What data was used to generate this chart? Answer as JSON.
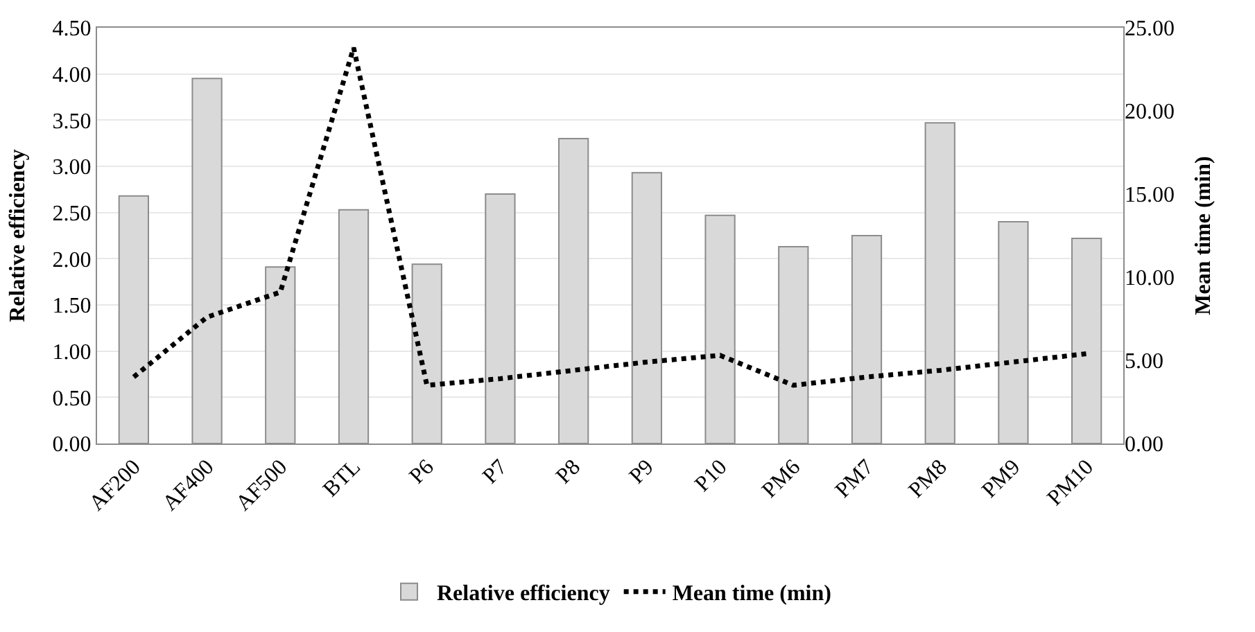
{
  "chart_data": {
    "type": "bar",
    "categories": [
      "AF200",
      "AF400",
      "AF500",
      "BTL",
      "P6",
      "P7",
      "P8",
      "P9",
      "P10",
      "PM6",
      "PM7",
      "PM8",
      "PM9",
      "PM10"
    ],
    "series": [
      {
        "name": "Relative efficiency",
        "color": "#d9d9d9",
        "values": [
          2.68,
          3.95,
          1.91,
          2.53,
          1.94,
          2.7,
          3.3,
          2.93,
          2.47,
          2.13,
          2.25,
          3.47,
          2.4,
          2.22
        ]
      },
      {
        "name": "Mean time (min)",
        "type": "line",
        "axis": "y2",
        "color": "#000000",
        "line_style": "dotted",
        "values": [
          4.0,
          7.6,
          9.1,
          23.8,
          3.5,
          3.9,
          4.4,
          4.9,
          5.3,
          3.5,
          4.0,
          4.4,
          4.9,
          5.4
        ]
      }
    ],
    "ylabel": "Relative efficiency",
    "y2label": "Mean time (min)",
    "ylim": [
      0,
      4.5
    ],
    "yticks": [
      {
        "value": 0,
        "label": "0.00"
      },
      {
        "value": 0.5,
        "label": "0.50"
      },
      {
        "value": 1,
        "label": "1.00"
      },
      {
        "value": 1.5,
        "label": "1.50"
      },
      {
        "value": 2,
        "label": "2.00"
      },
      {
        "value": 2.5,
        "label": "2.50"
      },
      {
        "value": 3,
        "label": "3.00"
      },
      {
        "value": 3.5,
        "label": "3.50"
      },
      {
        "value": 4,
        "label": "4.00"
      },
      {
        "value": 4.5,
        "label": "4.50"
      }
    ],
    "y2lim": [
      0,
      25
    ],
    "y2ticks": [
      {
        "value": 0,
        "label": "0.00"
      },
      {
        "value": 5,
        "label": "5.00"
      },
      {
        "value": 10,
        "label": "10.00"
      },
      {
        "value": 15,
        "label": "15.00"
      },
      {
        "value": 20,
        "label": "20.00"
      },
      {
        "value": 25,
        "label": "25.00"
      }
    ],
    "grid": "y",
    "legend": "bottom"
  }
}
